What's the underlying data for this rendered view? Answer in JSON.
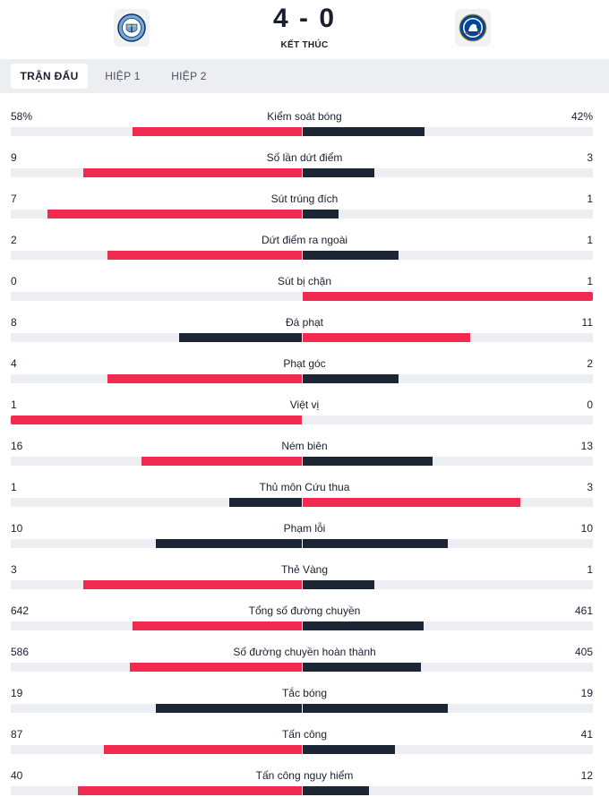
{
  "match": {
    "score": "4 - 0",
    "status": "KẾT THÚC",
    "home_crest_icon": "manchester-city-crest-icon",
    "away_crest_icon": "chelsea-crest-icon"
  },
  "tabs": [
    {
      "label": "TRẬN ĐẤU",
      "active": true
    },
    {
      "label": "HIỆP 1",
      "active": false
    },
    {
      "label": "HIỆP 2",
      "active": false
    }
  ],
  "colors": {
    "winner": "#f02b4f",
    "other": "#1c2635",
    "track": "#eceef1"
  },
  "stats": [
    {
      "label": "Kiểm soát bóng",
      "home": "58%",
      "away": "42%",
      "home_share": 0.58,
      "away_share": 0.42
    },
    {
      "label": "Số lần dứt điểm",
      "home": "9",
      "away": "3",
      "home_share": 0.75,
      "away_share": 0.25
    },
    {
      "label": "Sút trúng đích",
      "home": "7",
      "away": "1",
      "home_share": 0.875,
      "away_share": 0.125
    },
    {
      "label": "Dứt điểm ra ngoài",
      "home": "2",
      "away": "1",
      "home_share": 0.667,
      "away_share": 0.333
    },
    {
      "label": "Sút bị chặn",
      "home": "0",
      "away": "1",
      "home_share": 0,
      "away_share": 1
    },
    {
      "label": "Đá phạt",
      "home": "8",
      "away": "11",
      "home_share": 0.421,
      "away_share": 0.579
    },
    {
      "label": "Phạt góc",
      "home": "4",
      "away": "2",
      "home_share": 0.667,
      "away_share": 0.333
    },
    {
      "label": "Việt vị",
      "home": "1",
      "away": "0",
      "home_share": 1,
      "away_share": 0
    },
    {
      "label": "Ném biên",
      "home": "16",
      "away": "13",
      "home_share": 0.552,
      "away_share": 0.448
    },
    {
      "label": "Thủ môn Cứu thua",
      "home": "1",
      "away": "3",
      "home_share": 0.25,
      "away_share": 0.75
    },
    {
      "label": "Phạm lỗi",
      "home": "10",
      "away": "10",
      "home_share": 0.5,
      "away_share": 0.5
    },
    {
      "label": "Thẻ Vàng",
      "home": "3",
      "away": "1",
      "home_share": 0.75,
      "away_share": 0.25
    },
    {
      "label": "Tổng số đường chuyền",
      "home": "642",
      "away": "461",
      "home_share": 0.582,
      "away_share": 0.418
    },
    {
      "label": "Số đường chuyền hoàn thành",
      "home": "586",
      "away": "405",
      "home_share": 0.591,
      "away_share": 0.409
    },
    {
      "label": "Tắc bóng",
      "home": "19",
      "away": "19",
      "home_share": 0.5,
      "away_share": 0.5
    },
    {
      "label": "Tấn công",
      "home": "87",
      "away": "41",
      "home_share": 0.68,
      "away_share": 0.32
    },
    {
      "label": "Tấn công nguy hiểm",
      "home": "40",
      "away": "12",
      "home_share": 0.769,
      "away_share": 0.231
    }
  ]
}
